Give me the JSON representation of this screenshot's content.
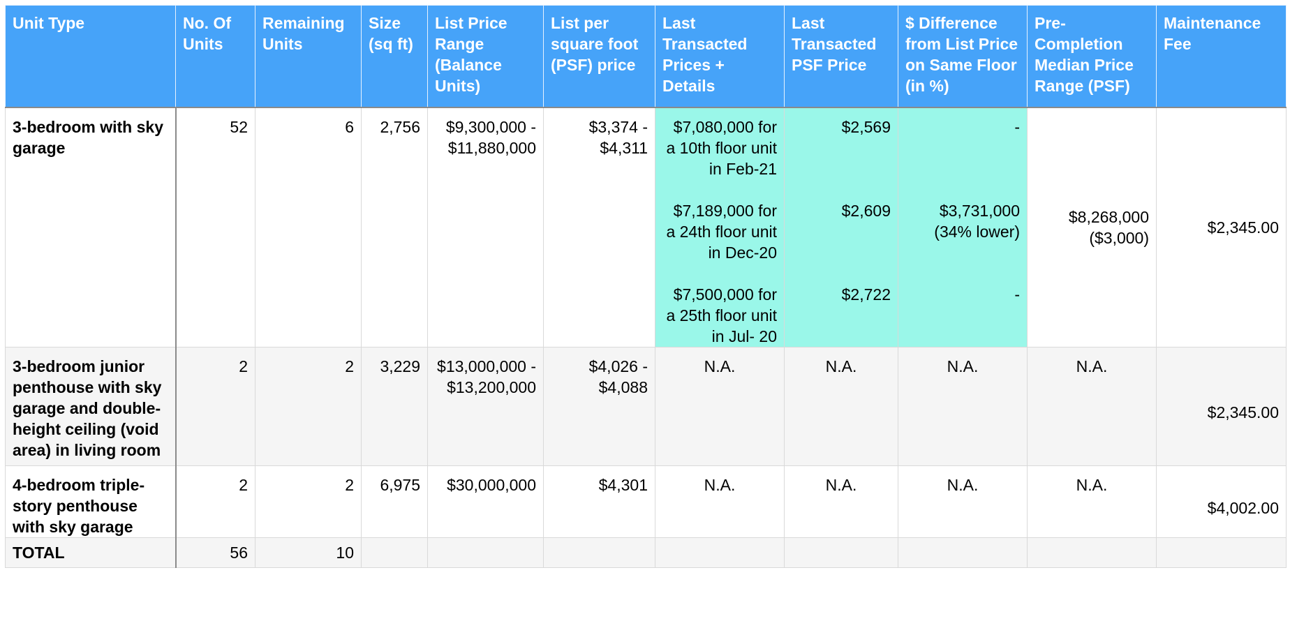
{
  "headers": [
    "Unit Type",
    "No. Of Units",
    "Remaining Units",
    "Size (sq ft)",
    "List Price Range (Balance Units)",
    "List per square foot (PSF) price",
    "Last Transacted Prices + Details",
    "Last Transacted PSF Price",
    "$ Difference from List Price on Same Floor (in %)",
    "Pre-Completion Median Price Range (PSF)",
    "Maintenance Fee"
  ],
  "rows": [
    {
      "unit_type": "3-bedroom with sky garage",
      "units": "52",
      "remaining": "6",
      "size": "2,756",
      "list_price": "$9,300,000 - $11,880,000",
      "list_psf": "$3,374 - $4,311",
      "transactions": [
        {
          "details": "$7,080,000 for a 10th floor unit in Feb-21",
          "psf": "$2,569",
          "diff": "-"
        },
        {
          "details": "$7,189,000 for a 24th floor unit in Dec-20",
          "psf": "$2,609",
          "diff": "$3,731,000 (34% lower)"
        },
        {
          "details": "$7,500,000 for a 25th floor unit in Jul- 20",
          "psf": "$2,722",
          "diff": "-"
        }
      ],
      "median": "$8,268,000 ($3,000)",
      "fee": "$2,345.00"
    },
    {
      "unit_type": "3-bedroom junior penthouse with sky garage and double-height ceiling (void area) in living room",
      "units": "2",
      "remaining": "2",
      "size": "3,229",
      "list_price": "$13,000,000 - $13,200,000",
      "list_psf": "$4,026 - $4,088",
      "last_details": "N.A.",
      "last_psf": "N.A.",
      "diff": "N.A.",
      "median": "N.A.",
      "fee": "$2,345.00"
    },
    {
      "unit_type": "4-bedroom triple-story penthouse with sky garage",
      "units": "2",
      "remaining": "2",
      "size": "6,975",
      "list_price": "$30,000,000",
      "list_psf": "$4,301",
      "last_details": "N.A.",
      "last_psf": "N.A.",
      "diff": "N.A.",
      "median": "N.A.",
      "fee": "$4,002.00"
    }
  ],
  "total": {
    "label": "TOTAL",
    "units": "56",
    "remaining": "10"
  }
}
